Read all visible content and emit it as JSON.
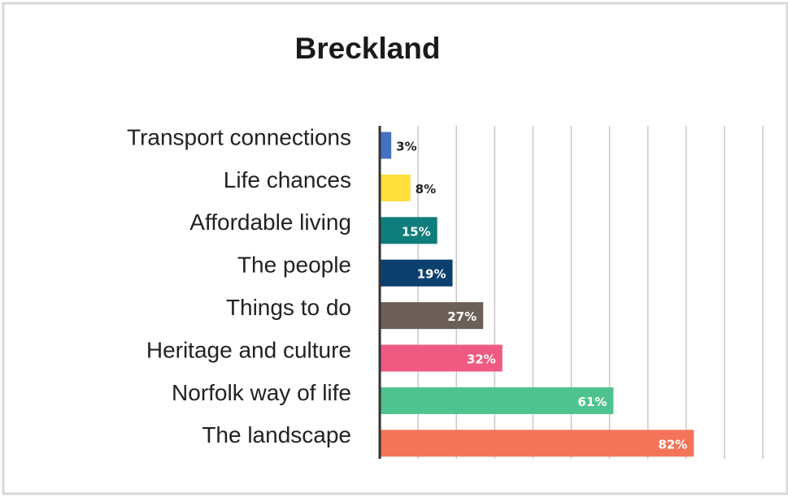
{
  "chart_data": {
    "type": "barh",
    "title": "Breckland",
    "categories": [
      "Transport connections",
      "Life chances",
      "Affordable living",
      "The people",
      "Things to do",
      "Heritage and culture",
      "Norfolk way of life",
      "The landscape"
    ],
    "values": [
      3,
      8,
      15,
      19,
      27,
      32,
      61,
      82
    ],
    "value_labels": [
      "3%",
      "8%",
      "15%",
      "19%",
      "27%",
      "32%",
      "61%",
      "82%"
    ],
    "colors": [
      "#4472c4",
      "#ffdf3a",
      "#0f7d7b",
      "#0b3f6e",
      "#6b5f58",
      "#ef5a83",
      "#4fc38f",
      "#f4745a"
    ],
    "xlim": [
      0,
      100
    ],
    "xticks": [
      0,
      10,
      20,
      30,
      40,
      50,
      60,
      70,
      80,
      90,
      100
    ],
    "grid": true
  }
}
